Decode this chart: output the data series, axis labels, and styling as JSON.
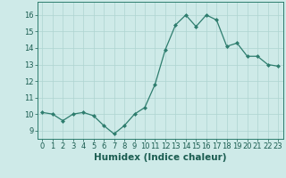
{
  "x": [
    0,
    1,
    2,
    3,
    4,
    5,
    6,
    7,
    8,
    9,
    10,
    11,
    12,
    13,
    14,
    15,
    16,
    17,
    18,
    19,
    20,
    21,
    22,
    23
  ],
  "y": [
    10.1,
    10.0,
    9.6,
    10.0,
    10.1,
    9.9,
    9.3,
    8.8,
    9.3,
    10.0,
    10.4,
    11.8,
    13.9,
    15.4,
    16.0,
    15.3,
    16.0,
    15.7,
    14.1,
    14.3,
    13.5,
    13.5,
    13.0,
    12.9
  ],
  "xlabel": "Humidex (Indice chaleur)",
  "ylim": [
    8.5,
    16.8
  ],
  "xlim": [
    -0.5,
    23.5
  ],
  "yticks": [
    9,
    10,
    11,
    12,
    13,
    14,
    15,
    16
  ],
  "xticks": [
    0,
    1,
    2,
    3,
    4,
    5,
    6,
    7,
    8,
    9,
    10,
    11,
    12,
    13,
    14,
    15,
    16,
    17,
    18,
    19,
    20,
    21,
    22,
    23
  ],
  "line_color": "#2e7d6e",
  "marker": "D",
  "marker_size": 2.0,
  "bg_color": "#ceeae8",
  "grid_color": "#aed4d0",
  "axis_color": "#2e7d6e",
  "tick_label_color": "#1a5c50",
  "xlabel_color": "#1a5c50",
  "font_size": 6.0,
  "xlabel_font_size": 7.5
}
